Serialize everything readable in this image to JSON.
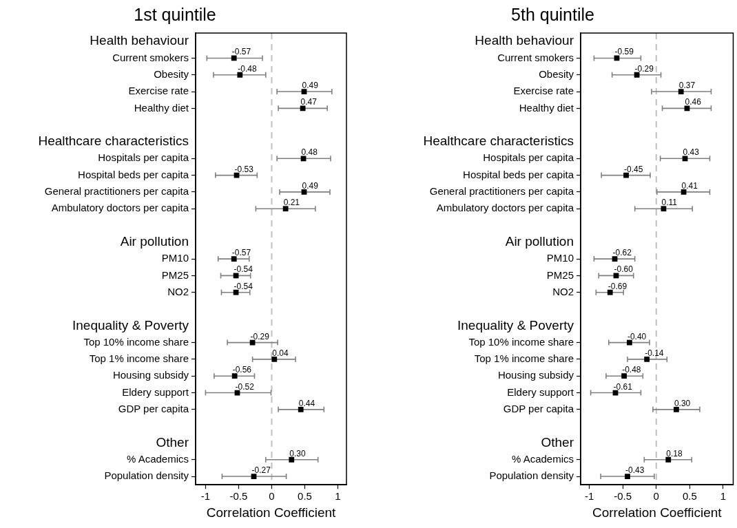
{
  "chart_data": [
    {
      "type": "scatter",
      "orientation": "horizontal",
      "title": "1st quintile",
      "xlabel": "Correlation Coefficient",
      "marker": "square",
      "color": "#000000",
      "categories": [
        "Health behaviour",
        "Current smokers",
        "Obesity",
        "Exercise rate",
        "Healthy diet",
        null,
        "Healthcare characteristics",
        "Hospitals per capita",
        "Hospital beds per capita",
        "General practitioners per capita",
        "Ambulatory doctors per capita",
        null,
        "Air pollution",
        "PM10",
        "PM25",
        "NO2",
        null,
        "Inequality & Poverty",
        "Top 10% income share",
        "Top 1% income share",
        "Housing subsidy",
        "Eldery support",
        "GDP per capita",
        null,
        "Other",
        "% Academics",
        "Population density"
      ],
      "values": [
        null,
        -0.57,
        -0.48,
        0.49,
        0.47,
        null,
        null,
        0.48,
        -0.53,
        0.49,
        0.21,
        null,
        null,
        -0.57,
        -0.54,
        -0.54,
        null,
        null,
        -0.29,
        0.04,
        -0.56,
        -0.52,
        0.44,
        null,
        null,
        0.3,
        -0.27
      ],
      "value_labels": [
        null,
        "-0.57",
        "-0.48",
        "0.49",
        "0.47",
        null,
        null,
        "0.48",
        "-0.53",
        "0.49",
        "0.21",
        null,
        null,
        "-0.57",
        "-0.54",
        "-0.54",
        null,
        null,
        "-0.29",
        "0.04",
        "-0.56",
        "-0.52",
        "0.44",
        null,
        null,
        "0.30",
        "-0.27"
      ],
      "errors": [
        null,
        [
          -0.98,
          -0.14
        ],
        [
          -0.88,
          -0.09
        ],
        [
          0.08,
          0.91
        ],
        [
          0.1,
          0.84
        ],
        null,
        null,
        [
          0.08,
          0.89
        ],
        [
          -0.85,
          -0.22
        ],
        [
          0.12,
          0.88
        ],
        [
          -0.24,
          0.66
        ],
        null,
        null,
        [
          -0.81,
          -0.34
        ],
        [
          -0.77,
          -0.32
        ],
        [
          -0.76,
          -0.33
        ],
        null,
        null,
        [
          -0.67,
          0.09
        ],
        [
          -0.29,
          0.36
        ],
        [
          -0.87,
          -0.26
        ],
        [
          -1.0,
          -0.01
        ],
        [
          0.1,
          0.79
        ],
        null,
        null,
        [
          -0.09,
          0.7
        ],
        [
          -0.75,
          0.22
        ]
      ],
      "xlim": [
        -1.15,
        1.13
      ],
      "xticks": [
        -1,
        -0.5,
        0,
        0.5,
        1
      ],
      "ref_lines": [
        {
          "axis": "x",
          "value": 0,
          "color": "#c0c0c0",
          "line_style": "dashed"
        }
      ]
    },
    {
      "type": "scatter",
      "orientation": "horizontal",
      "title": "5th quintile",
      "xlabel": "Correlation Coefficient",
      "marker": "square",
      "color": "#000000",
      "categories": [
        "Health behaviour",
        "Current smokers",
        "Obesity",
        "Exercise rate",
        "Healthy diet",
        null,
        "Healthcare characteristics",
        "Hospitals per capita",
        "Hospital beds per capita",
        "General practitioners per capita",
        "Ambulatory doctors per capita",
        null,
        "Air pollution",
        "PM10",
        "PM25",
        "NO2",
        null,
        "Inequality & Poverty",
        "Top 10% income share",
        "Top 1% income share",
        "Housing subsidy",
        "Eldery support",
        "GDP per capita",
        null,
        "Other",
        "% Academics",
        "Population density"
      ],
      "values": [
        null,
        -0.59,
        -0.29,
        0.37,
        0.46,
        null,
        null,
        0.43,
        -0.45,
        0.41,
        0.11,
        null,
        null,
        -0.62,
        -0.6,
        -0.69,
        null,
        null,
        -0.4,
        -0.14,
        -0.48,
        -0.61,
        0.3,
        null,
        null,
        0.18,
        -0.43
      ],
      "value_labels": [
        null,
        "-0.59",
        "-0.29",
        "0.37",
        "0.46",
        null,
        null,
        "0.43",
        "-0.45",
        "0.41",
        "0.11",
        null,
        null,
        "-0.62",
        "-0.60",
        "-0.69",
        null,
        null,
        "-0.40",
        "-0.14",
        "-0.48",
        "-0.61",
        "0.30",
        null,
        null,
        "0.18",
        "-0.43"
      ],
      "errors": [
        null,
        [
          -0.93,
          -0.23
        ],
        [
          -0.66,
          0.07
        ],
        [
          -0.07,
          0.82
        ],
        [
          0.09,
          0.82
        ],
        null,
        null,
        [
          0.06,
          0.8
        ],
        [
          -0.82,
          -0.09
        ],
        [
          0.01,
          0.8
        ],
        [
          -0.32,
          0.54
        ],
        null,
        null,
        [
          -0.93,
          -0.32
        ],
        [
          -0.86,
          -0.34
        ],
        [
          -0.9,
          -0.49
        ],
        null,
        null,
        [
          -0.71,
          -0.1
        ],
        [
          -0.43,
          0.16
        ],
        [
          -0.75,
          -0.2
        ],
        [
          -0.98,
          -0.23
        ],
        [
          -0.05,
          0.65
        ],
        null,
        null,
        [
          -0.18,
          0.53
        ],
        [
          -0.83,
          -0.03
        ]
      ],
      "xlim": [
        -1.13,
        1.15
      ],
      "xticks": [
        -1,
        -0.5,
        0,
        0.5,
        1
      ],
      "ref_lines": [
        {
          "axis": "x",
          "value": 0,
          "color": "#c0c0c0",
          "line_style": "dashed"
        }
      ]
    }
  ]
}
